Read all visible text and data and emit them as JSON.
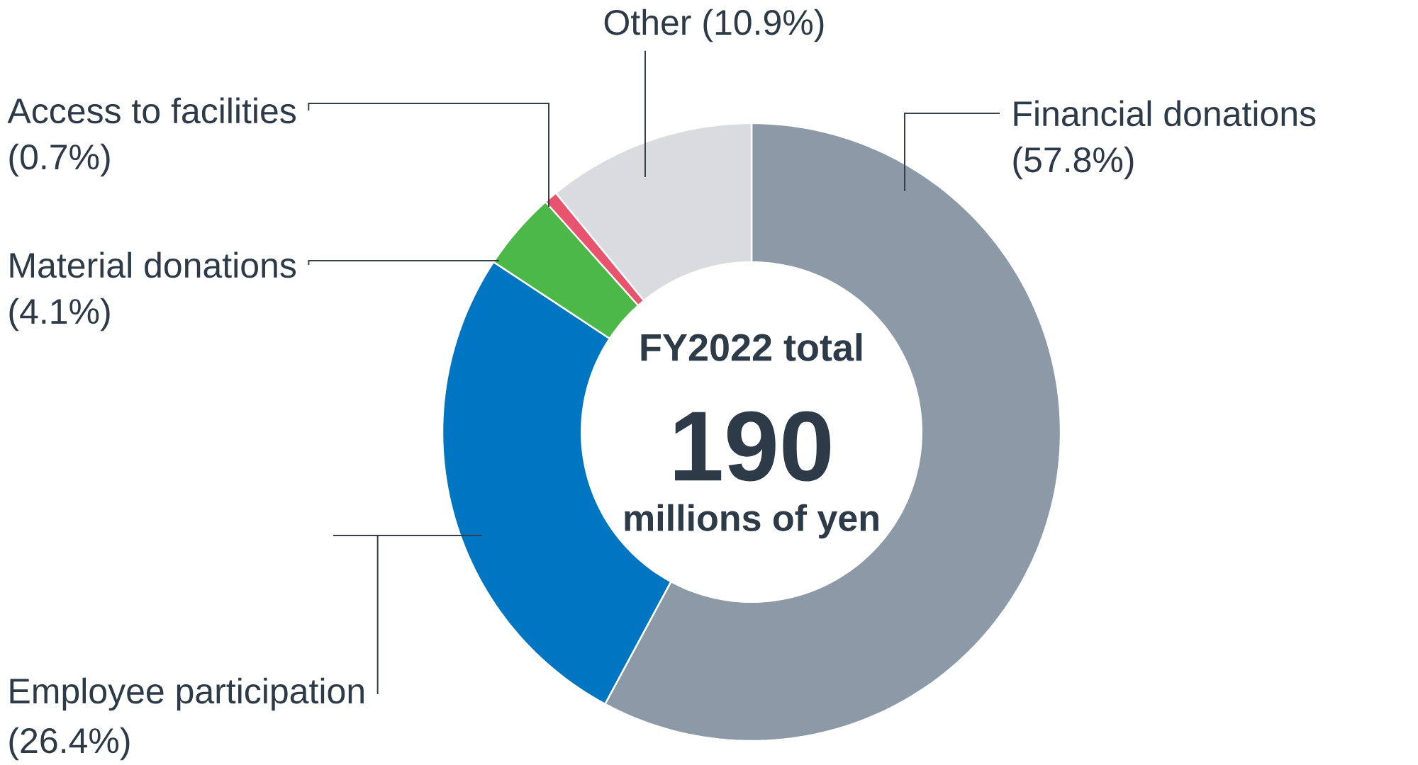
{
  "chart_data": {
    "type": "donut",
    "categories": [
      "Financial donations",
      "Employee participation",
      "Material donations",
      "Access to facilities",
      "Other"
    ],
    "values": [
      57.8,
      26.4,
      4.1,
      0.7,
      10.9
    ],
    "colors": [
      "#8c99a6",
      "#0075c2",
      "#4cb848",
      "#e8546e",
      "#d9dbde"
    ],
    "value_labels": [
      "(57.8%)",
      "(26.4%)",
      "(4.1%)",
      "(0.7%)",
      "(10.9%)"
    ],
    "annotations": [
      "FY2022 total",
      "190",
      "millions of yen"
    ]
  }
}
